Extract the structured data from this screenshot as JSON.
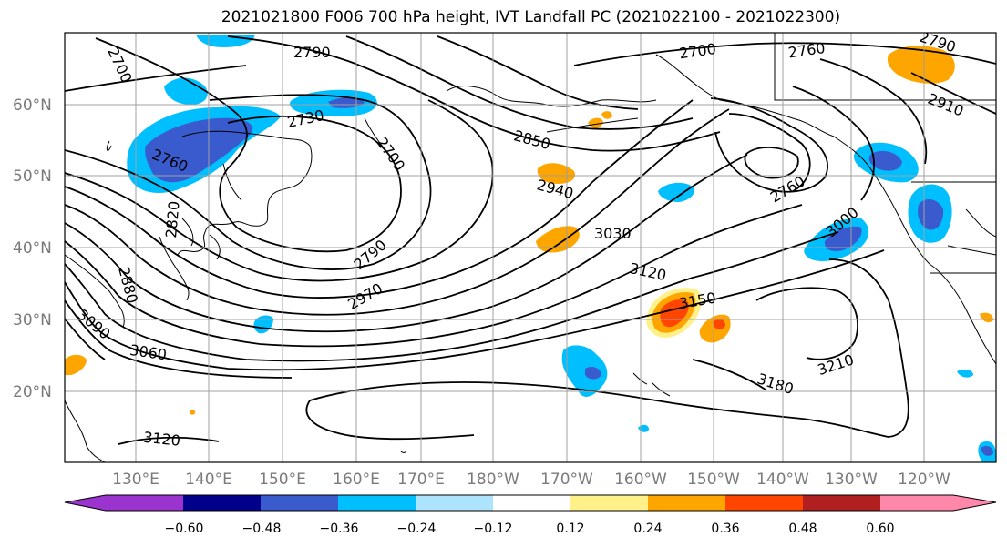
{
  "title": "2021021800 F006 700 hPa height, IVT Landfall PC (2021022100 - 2021022300)",
  "map": {
    "lat_labels": [
      "60°N",
      "50°N",
      "40°N",
      "30°N",
      "20°N"
    ],
    "lon_labels": [
      "130°E",
      "140°E",
      "150°E",
      "160°E",
      "170°E",
      "180°W",
      "170°W",
      "160°W",
      "150°W",
      "140°W",
      "130°W",
      "120°W"
    ],
    "contour_labels": [
      "2790",
      "2700",
      "2760",
      "2790",
      "2730",
      "2910",
      "2700",
      "2700",
      "2850",
      "2760",
      "2940",
      "2760",
      "2820",
      "3030",
      "3000",
      "2880",
      "2790",
      "3120",
      "2970",
      "3150",
      "3090",
      "3060",
      "3210",
      "3180",
      "3120"
    ]
  },
  "colorbar": {
    "colors": [
      "#9b34cf",
      "#00008b",
      "#3a5bcd",
      "#00bfff",
      "#aee3fd",
      "#ffffff",
      "#fff08a",
      "#ffa500",
      "#ff4500",
      "#b02020",
      "#ff88aa"
    ],
    "tick_labels": [
      "−0.60",
      "−0.48",
      "−0.36",
      "−0.24",
      "−0.12",
      "0.12",
      "0.24",
      "0.36",
      "0.48",
      "0.60"
    ]
  }
}
